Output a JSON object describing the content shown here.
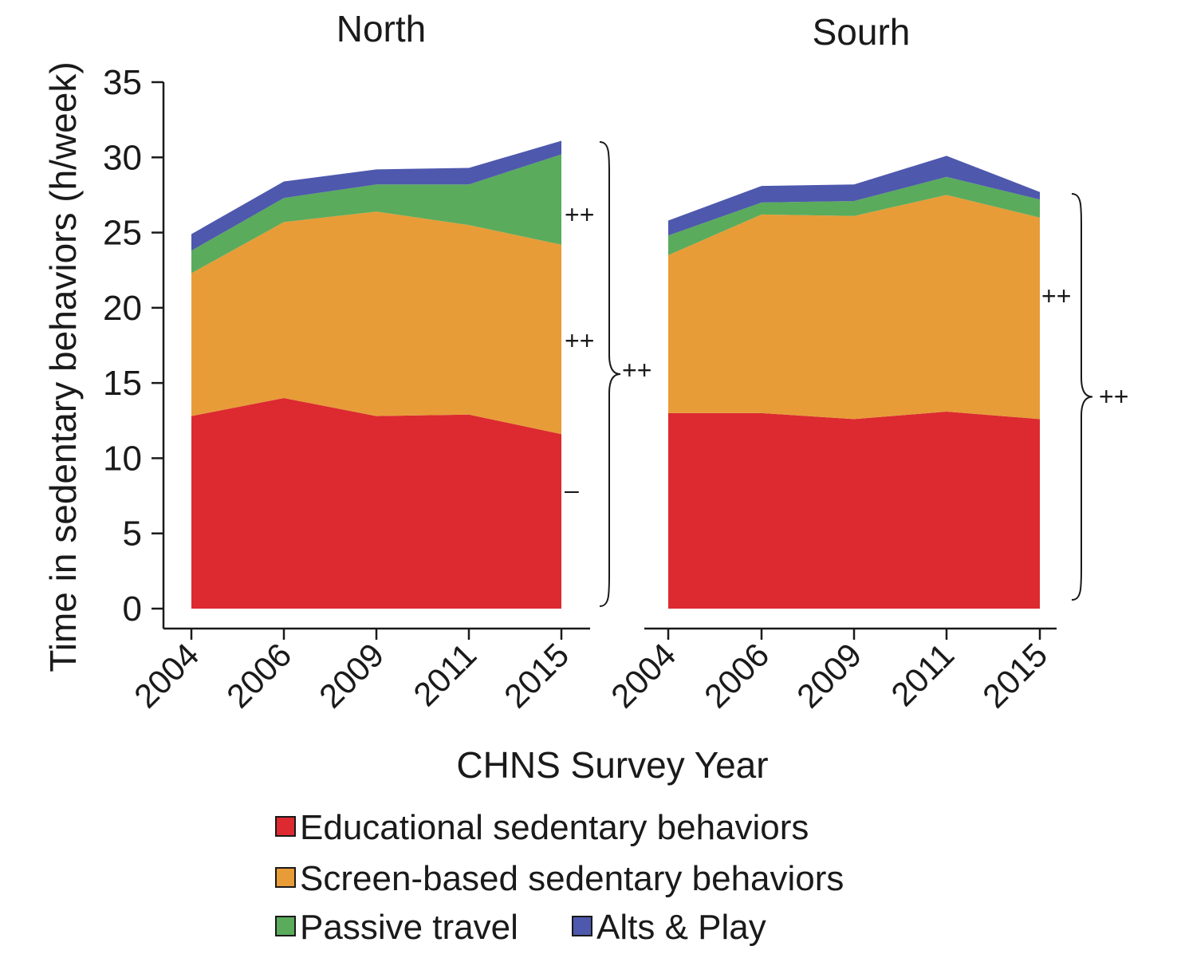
{
  "chart_data": [
    {
      "type": "area",
      "stacked": true,
      "title": "North",
      "categories": [
        "2004",
        "2006",
        "2009",
        "2011",
        "2015"
      ],
      "series": [
        {
          "name": "Educational sedentary behaviors",
          "values": [
            12.8,
            14.0,
            12.8,
            12.9,
            11.6
          ]
        },
        {
          "name": "Screen-based sedentary behaviors",
          "values": [
            9.5,
            11.7,
            13.6,
            12.6,
            12.6
          ]
        },
        {
          "name": "Passive travel",
          "values": [
            1.5,
            1.6,
            1.8,
            2.7,
            6.0
          ]
        },
        {
          "name": "Alts & Play",
          "values": [
            1.1,
            1.1,
            1.0,
            1.1,
            0.9
          ]
        }
      ],
      "annotations": [
        {
          "label": "++",
          "target": "Passive travel"
        },
        {
          "label": "++",
          "target": "Screen-based sedentary behaviors"
        },
        {
          "label": "–",
          "target": "Educational sedentary behaviors"
        },
        {
          "label": "++",
          "target": "Total"
        }
      ]
    },
    {
      "type": "area",
      "stacked": true,
      "title": "Sourh",
      "categories": [
        "2004",
        "2006",
        "2009",
        "2011",
        "2015"
      ],
      "series": [
        {
          "name": "Educational sedentary behaviors",
          "values": [
            13.0,
            13.0,
            12.6,
            13.1,
            12.6
          ]
        },
        {
          "name": "Screen-based sedentary behaviors",
          "values": [
            10.5,
            13.2,
            13.5,
            14.4,
            13.4
          ]
        },
        {
          "name": "Passive travel",
          "values": [
            1.3,
            0.8,
            1.0,
            1.2,
            1.2
          ]
        },
        {
          "name": "Alts & Play",
          "values": [
            1.0,
            1.1,
            1.1,
            1.4,
            0.5
          ]
        }
      ],
      "annotations": [
        {
          "label": "++",
          "target": "Screen-based sedentary behaviors"
        },
        {
          "label": "++",
          "target": "Total"
        }
      ]
    }
  ],
  "axes": {
    "ylabel": "Time in sedentary behaviors (h/week)",
    "xlabel": "CHNS Survey Year",
    "ylim": [
      0,
      35
    ],
    "yticks": [
      "0",
      "5",
      "10",
      "15",
      "20",
      "25",
      "30",
      "35"
    ]
  },
  "legend": {
    "placement": "bottom",
    "items": [
      {
        "label": "Educational sedentary behaviors",
        "color": "#dc2a30"
      },
      {
        "label": "Screen-based sedentary behaviors",
        "color": "#e79c38"
      },
      {
        "label": "Passive travel",
        "color": "#5aab5c"
      },
      {
        "label": "Alts & Play",
        "color": "#4e58ad"
      }
    ]
  },
  "colors": [
    "#dc2a30",
    "#e79c38",
    "#5aab5c",
    "#4e58ad"
  ]
}
